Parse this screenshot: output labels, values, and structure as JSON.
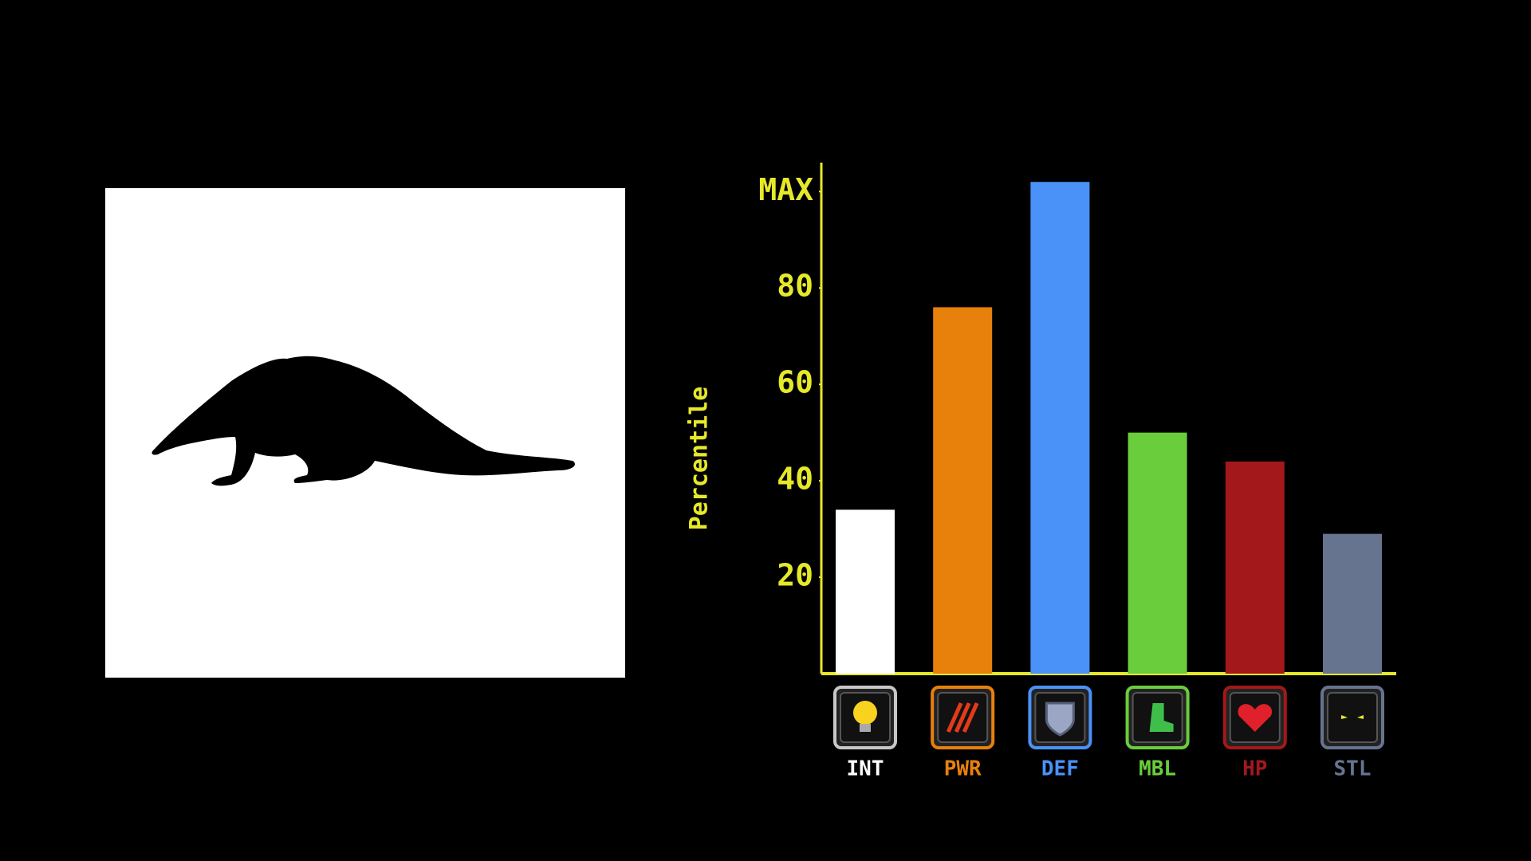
{
  "chart_data": {
    "type": "bar",
    "y_label": "Percentile",
    "categories": [
      "INT",
      "PWR",
      "DEF",
      "MBL",
      "HP",
      "STL"
    ],
    "values": [
      34,
      76,
      102,
      50,
      44,
      29
    ],
    "colors": [
      "#ffffff",
      "#e8800c",
      "#4a92f7",
      "#6acd3c",
      "#a3181a",
      "#67748f"
    ],
    "ylim": [
      0,
      106
    ],
    "yticks": [
      20,
      40,
      60,
      80,
      {
        "value": 100,
        "label": "MAX"
      }
    ],
    "axis_color": "#e6e82a"
  }
}
